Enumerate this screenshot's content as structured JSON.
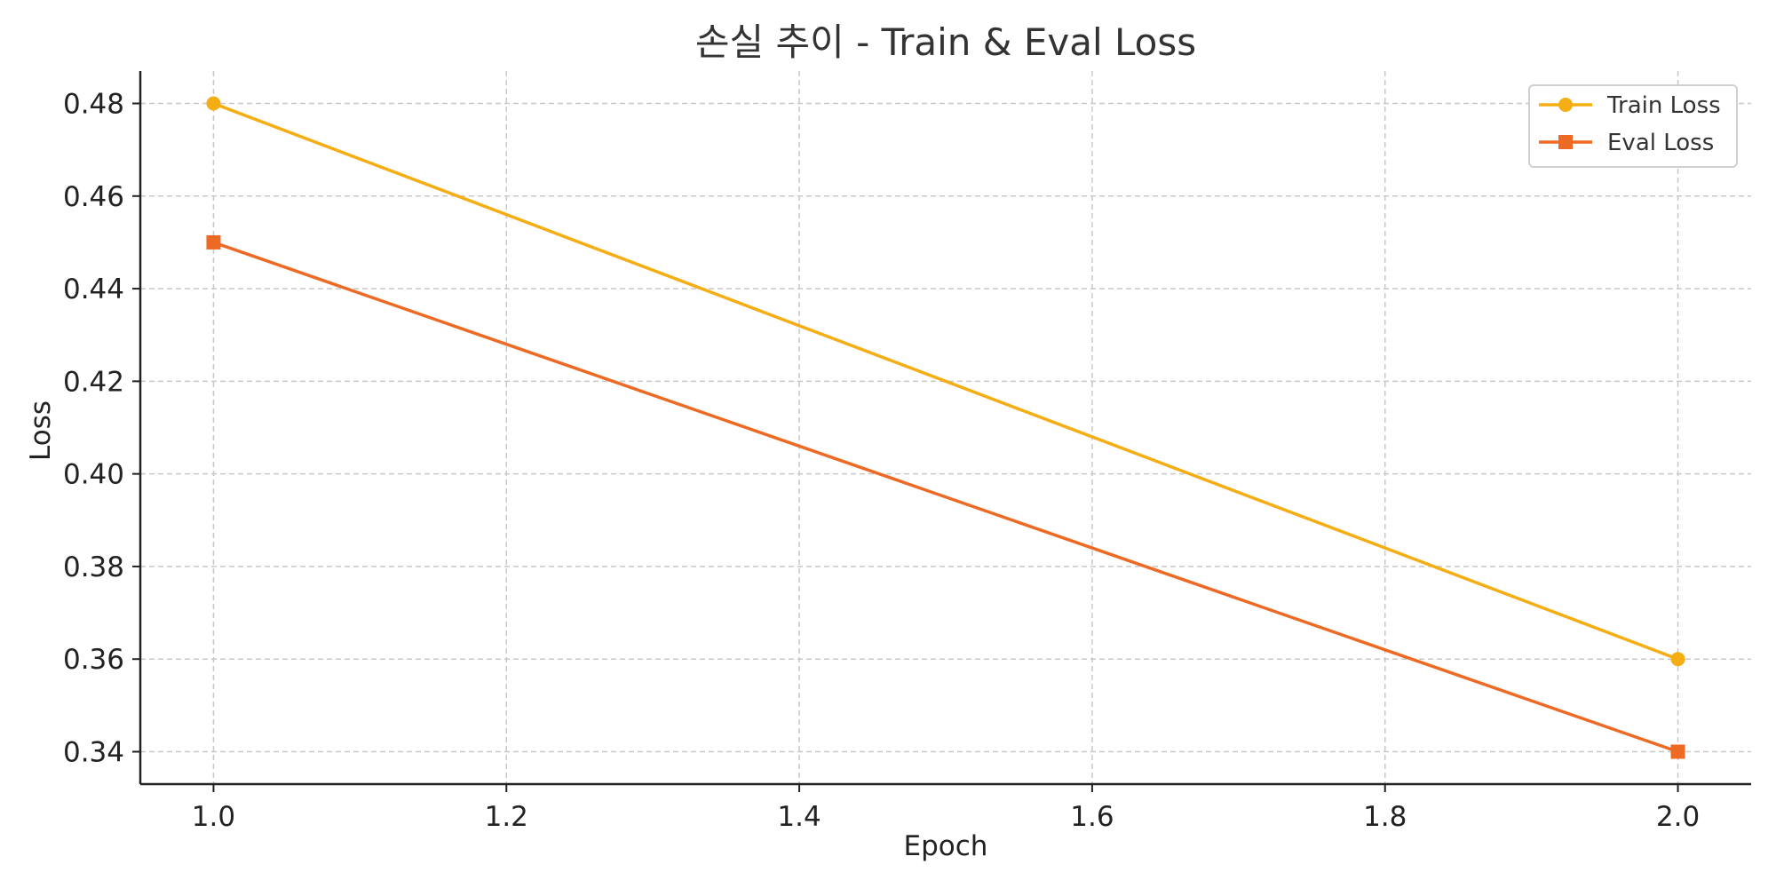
{
  "chart_data": {
    "type": "line",
    "title": "손실 추이 - Train & Eval Loss",
    "xlabel": "Epoch",
    "ylabel": "Loss",
    "x": [
      1.0,
      2.0
    ],
    "xlim": [
      0.95,
      2.05
    ],
    "ylim": [
      0.333,
      0.487
    ],
    "xticks": [
      "1.0",
      "1.2",
      "1.4",
      "1.6",
      "1.8",
      "2.0"
    ],
    "yticks": [
      "0.34",
      "0.36",
      "0.38",
      "0.40",
      "0.42",
      "0.44",
      "0.46",
      "0.48"
    ],
    "grid": true,
    "legend_position": "top-right",
    "series": [
      {
        "name": "Train Loss",
        "values": [
          0.48,
          0.36
        ],
        "color": "#f5ad14",
        "marker": "circle"
      },
      {
        "name": "Eval Loss",
        "values": [
          0.45,
          0.34
        ],
        "color": "#ee6a24",
        "marker": "square"
      }
    ]
  }
}
